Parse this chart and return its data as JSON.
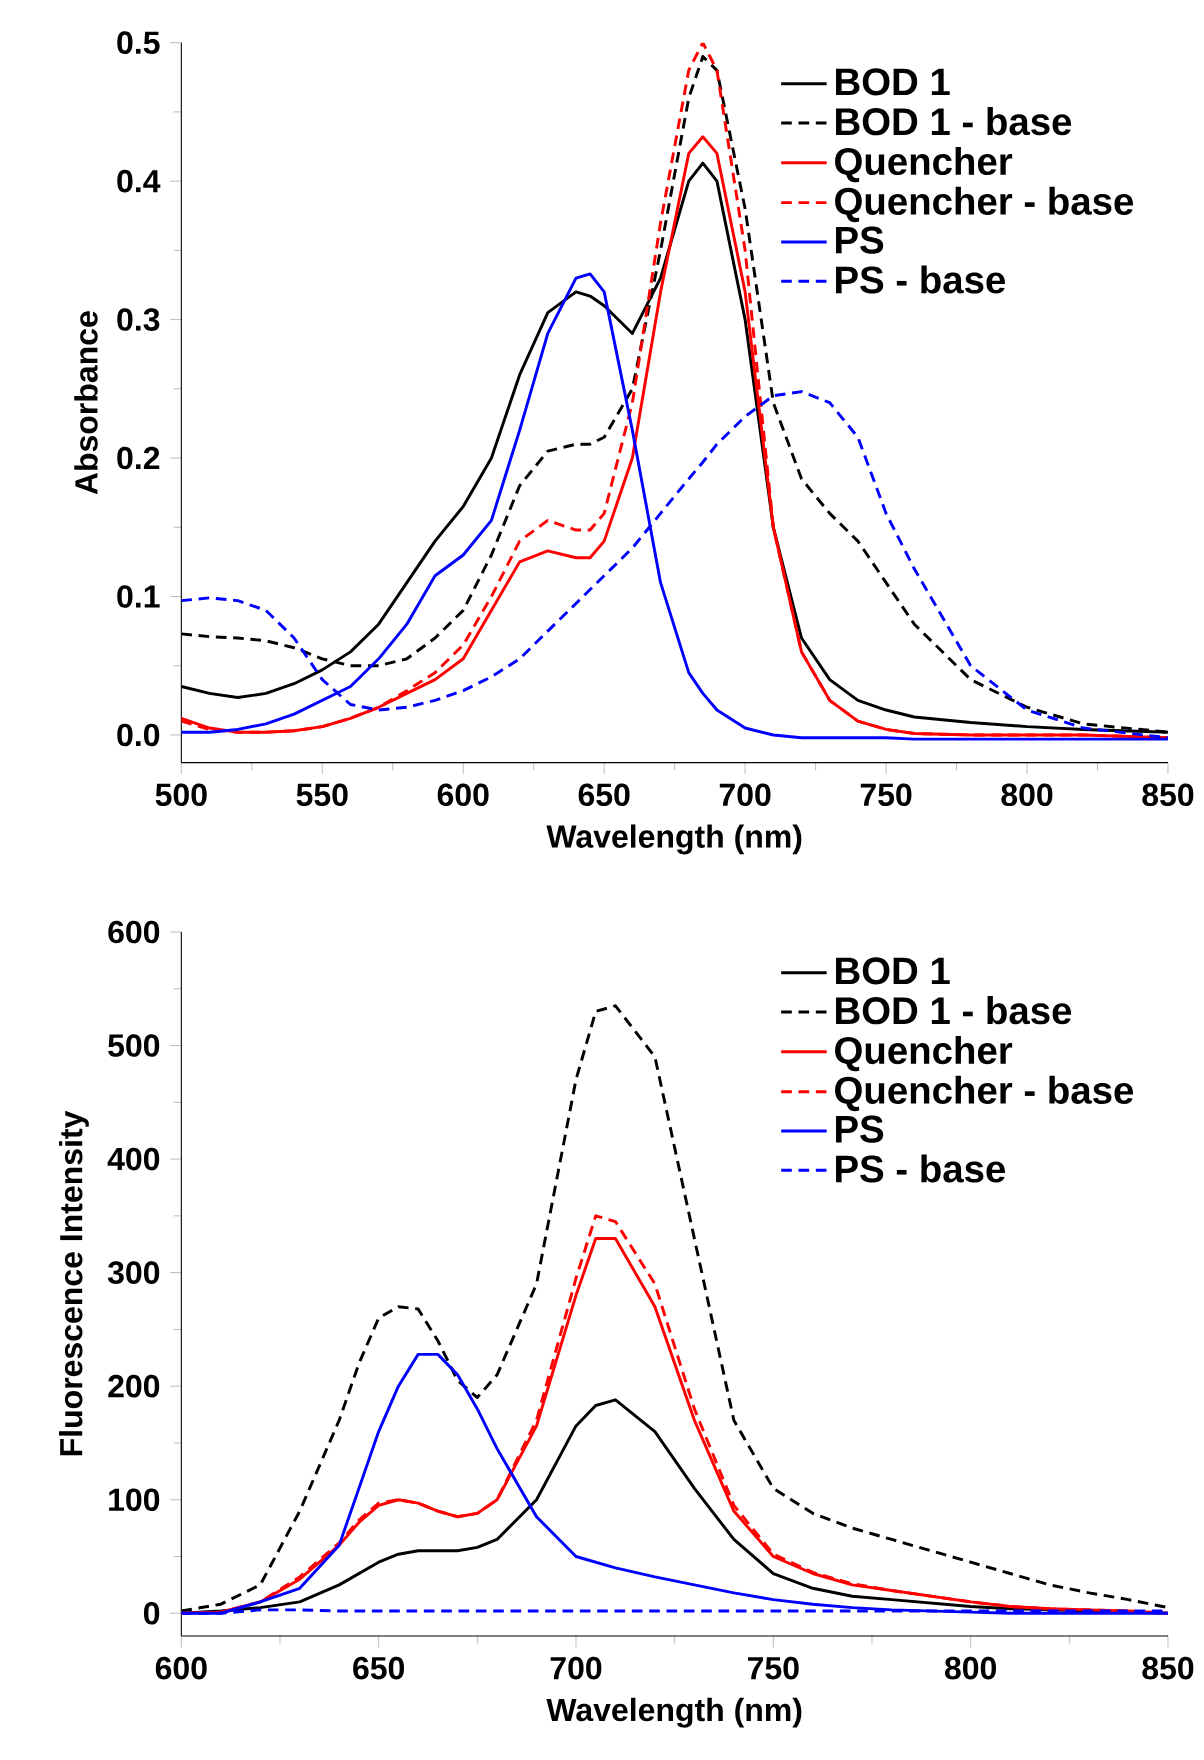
{
  "chart_data": [
    {
      "type": "line",
      "xlabel": "Wavelength (nm)",
      "ylabel": "Absorbance",
      "x": [
        500,
        510,
        520,
        530,
        540,
        550,
        560,
        570,
        580,
        590,
        600,
        610,
        620,
        630,
        640,
        645,
        650,
        660,
        670,
        680,
        685,
        690,
        700,
        710,
        720,
        730,
        740,
        750,
        760,
        780,
        800,
        820,
        850
      ],
      "series": [
        {
          "name": "BOD 1",
          "color": "#000000",
          "line_style": "solid",
          "values": [
            0.035,
            0.03,
            0.027,
            0.03,
            0.037,
            0.047,
            0.06,
            0.08,
            0.11,
            0.14,
            0.165,
            0.2,
            0.26,
            0.305,
            0.32,
            0.317,
            0.31,
            0.29,
            0.33,
            0.4,
            0.413,
            0.4,
            0.3,
            0.15,
            0.07,
            0.04,
            0.025,
            0.018,
            0.013,
            0.009,
            0.006,
            0.004,
            0.002
          ]
        },
        {
          "name": "BOD 1 - base",
          "color": "#000000",
          "line_style": "dashed",
          "values": [
            0.073,
            0.071,
            0.07,
            0.068,
            0.063,
            0.055,
            0.05,
            0.05,
            0.055,
            0.07,
            0.09,
            0.13,
            0.18,
            0.205,
            0.21,
            0.21,
            0.215,
            0.25,
            0.35,
            0.46,
            0.49,
            0.48,
            0.38,
            0.24,
            0.185,
            0.16,
            0.14,
            0.11,
            0.08,
            0.04,
            0.02,
            0.008,
            0.002
          ]
        },
        {
          "name": "Quencher",
          "color": "#ff0000",
          "line_style": "solid",
          "values": [
            0.012,
            0.005,
            0.002,
            0.002,
            0.003,
            0.006,
            0.012,
            0.02,
            0.03,
            0.04,
            0.055,
            0.09,
            0.125,
            0.133,
            0.128,
            0.128,
            0.14,
            0.2,
            0.32,
            0.42,
            0.432,
            0.42,
            0.32,
            0.15,
            0.06,
            0.025,
            0.01,
            0.004,
            0.001,
            0,
            0,
            0,
            -0.002
          ]
        },
        {
          "name": "Quencher - base",
          "color": "#ff0000",
          "line_style": "dashed",
          "values": [
            0.01,
            0.004,
            0.002,
            0.002,
            0.003,
            0.006,
            0.012,
            0.02,
            0.032,
            0.045,
            0.065,
            0.1,
            0.14,
            0.155,
            0.148,
            0.148,
            0.16,
            0.24,
            0.37,
            0.48,
            0.5,
            0.48,
            0.35,
            0.15,
            0.06,
            0.025,
            0.01,
            0.004,
            0.001,
            0,
            0,
            0,
            -0.002
          ]
        },
        {
          "name": "PS",
          "color": "#0000ff",
          "line_style": "solid",
          "values": [
            0.002,
            0.002,
            0.004,
            0.008,
            0.015,
            0.025,
            0.035,
            0.055,
            0.08,
            0.115,
            0.13,
            0.155,
            0.22,
            0.29,
            0.33,
            0.333,
            0.32,
            0.22,
            0.11,
            0.045,
            0.03,
            0.018,
            0.005,
            0,
            -0.002,
            -0.002,
            -0.002,
            -0.002,
            -0.003,
            -0.003,
            -0.003,
            -0.003,
            -0.003
          ]
        },
        {
          "name": "PS - base",
          "color": "#0000ff",
          "line_style": "dashed",
          "values": [
            0.097,
            0.099,
            0.097,
            0.09,
            0.07,
            0.04,
            0.022,
            0.018,
            0.02,
            0.025,
            0.032,
            0.042,
            0.055,
            0.075,
            0.095,
            0.105,
            0.115,
            0.135,
            0.16,
            0.185,
            0.197,
            0.21,
            0.23,
            0.245,
            0.248,
            0.24,
            0.215,
            0.16,
            0.12,
            0.05,
            0.018,
            0.005,
            -0.002
          ]
        }
      ],
      "xlim": [
        500,
        850
      ],
      "xticks": [
        500,
        550,
        600,
        650,
        700,
        750,
        800,
        850
      ],
      "ylim": [
        -0.02,
        0.5
      ],
      "yticks": [
        {
          "value": 0,
          "label": "0.0"
        },
        0.1,
        0.2,
        0.3,
        0.4,
        0.5
      ],
      "legend": "top right"
    },
    {
      "type": "line",
      "xlabel": "Wavelength (nm)",
      "ylabel": "Fluorescence Intensity",
      "x": [
        600,
        610,
        620,
        630,
        640,
        645,
        650,
        655,
        660,
        665,
        670,
        675,
        680,
        690,
        700,
        705,
        710,
        720,
        730,
        740,
        750,
        760,
        770,
        780,
        790,
        800,
        810,
        820,
        830,
        840,
        850
      ],
      "series": [
        {
          "name": "BOD 1",
          "color": "#000000",
          "line_style": "solid",
          "values": [
            0,
            2,
            5,
            10,
            25,
            35,
            45,
            52,
            55,
            55,
            55,
            58,
            65,
            100,
            165,
            183,
            188,
            160,
            110,
            65,
            35,
            22,
            15,
            12,
            9,
            6,
            4,
            3,
            2,
            1,
            0
          ]
        },
        {
          "name": "BOD 1 - base",
          "color": "#000000",
          "line_style": "dashed",
          "values": [
            2,
            8,
            25,
            90,
            170,
            220,
            260,
            270,
            268,
            240,
            205,
            190,
            210,
            290,
            470,
            530,
            535,
            490,
            330,
            170,
            110,
            88,
            75,
            65,
            55,
            45,
            35,
            25,
            18,
            12,
            5
          ]
        },
        {
          "name": "Quencher",
          "color": "#ff0000",
          "line_style": "solid",
          "values": [
            0,
            1,
            10,
            30,
            60,
            80,
            95,
            100,
            97,
            90,
            85,
            88,
            100,
            165,
            280,
            330,
            330,
            270,
            170,
            90,
            50,
            35,
            25,
            20,
            15,
            10,
            6,
            4,
            3,
            2,
            0
          ]
        },
        {
          "name": "Quencher - base",
          "color": "#ff0000",
          "line_style": "dashed",
          "values": [
            0,
            1,
            10,
            32,
            62,
            82,
            97,
            100,
            97,
            90,
            85,
            88,
            100,
            170,
            295,
            350,
            345,
            290,
            180,
            95,
            52,
            36,
            26,
            20,
            15,
            10,
            6,
            4,
            3,
            2,
            0
          ]
        },
        {
          "name": "PS",
          "color": "#0000ff",
          "line_style": "solid",
          "values": [
            0,
            0,
            10,
            22,
            60,
            110,
            160,
            200,
            228,
            228,
            210,
            180,
            145,
            85,
            50,
            45,
            40,
            32,
            25,
            18,
            12,
            8,
            5,
            3,
            2,
            1,
            0,
            0,
            0,
            0,
            0
          ]
        },
        {
          "name": "PS - base",
          "color": "#0000ff",
          "line_style": "dashed",
          "values": [
            0,
            0,
            3,
            3,
            2,
            2,
            2,
            2,
            2,
            2,
            2,
            2,
            2,
            2,
            2,
            2,
            2,
            2,
            2,
            2,
            2,
            2,
            2,
            2,
            2,
            2,
            2,
            2,
            2,
            2,
            2
          ]
        }
      ],
      "xlim": [
        600,
        850
      ],
      "xticks": [
        600,
        650,
        700,
        750,
        800,
        850
      ],
      "ylim": [
        -20,
        600
      ],
      "yticks": [
        0,
        100,
        200,
        300,
        400,
        500,
        600
      ],
      "legend": "top right"
    }
  ]
}
